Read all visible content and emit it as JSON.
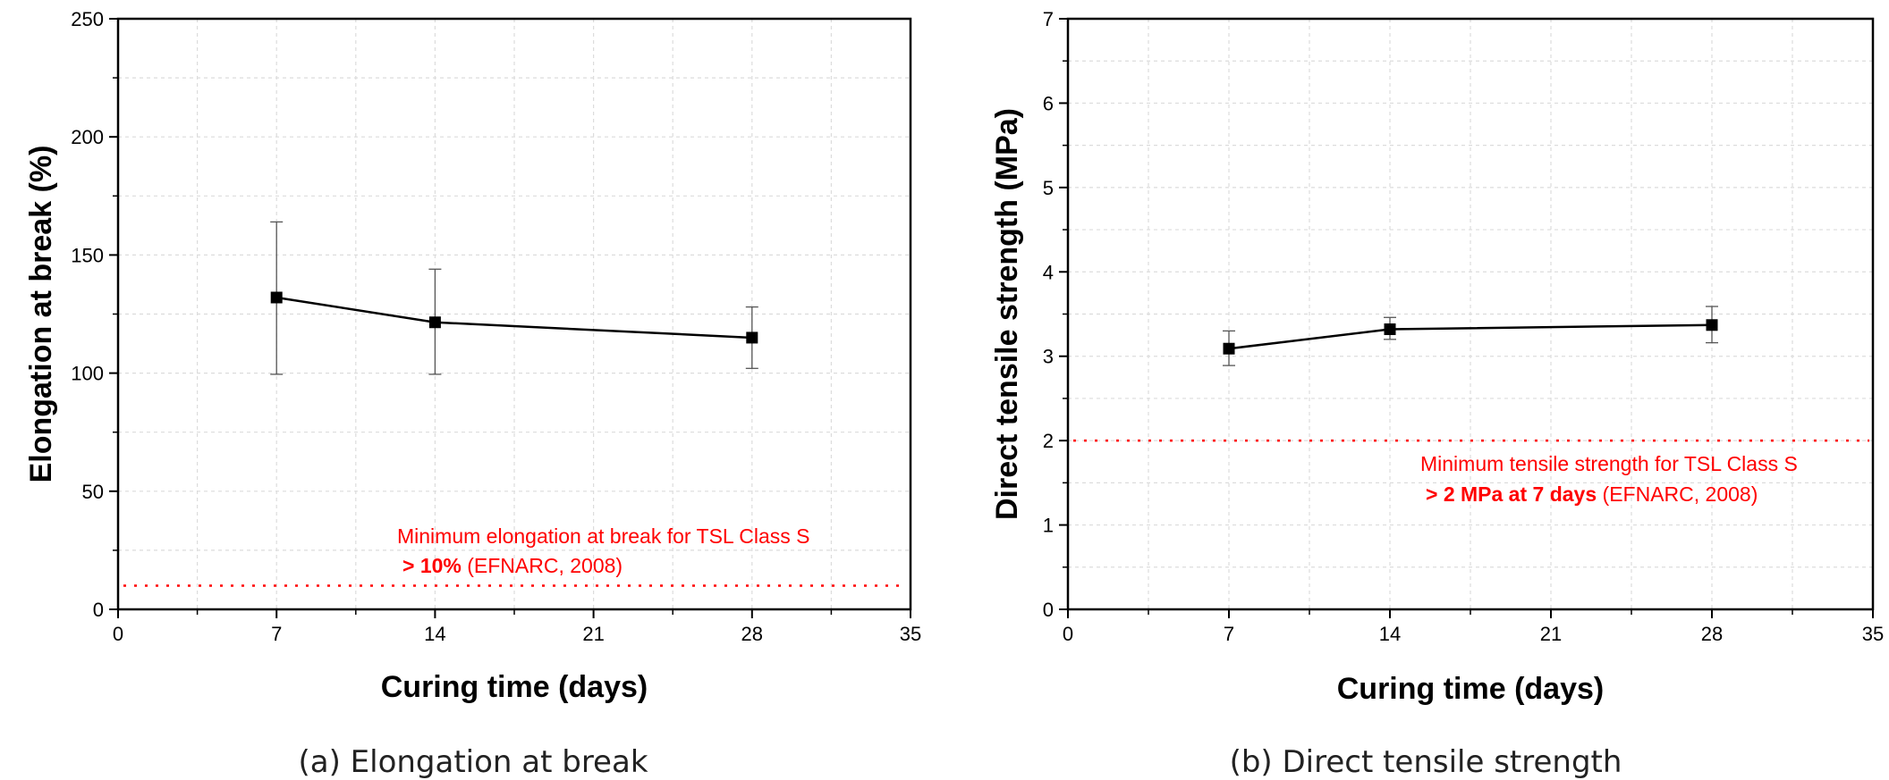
{
  "chart_data": [
    {
      "type": "line",
      "caption": "(a) Elongation at break",
      "xlabel": "Curing time (days)",
      "ylabel": "Elongation at break (%)",
      "xlim": [
        0,
        35
      ],
      "ylim": [
        0,
        250
      ],
      "xticks": [
        0,
        7,
        14,
        21,
        28,
        35
      ],
      "yticks": [
        0,
        50,
        100,
        150,
        200,
        250
      ],
      "grid": true,
      "series": [
        {
          "name": "Elongation at break",
          "x": [
            7,
            14,
            28
          ],
          "y": [
            132,
            121.5,
            115
          ],
          "err_low": [
            99.5,
            99.5,
            102
          ],
          "err_high": [
            164,
            144,
            128
          ]
        }
      ],
      "threshold": {
        "value": 10,
        "color": "#ff0000"
      },
      "annotation": {
        "line1": "Minimum elongation at break for TSL Class S",
        "line2_bold": "> 10%",
        "line2_rest": " (EFNARC, 2008)"
      }
    },
    {
      "type": "line",
      "caption": "(b) Direct tensile strength",
      "xlabel": "Curing time (days)",
      "ylabel": "Direct tensile strength (MPa)",
      "xlim": [
        0,
        35
      ],
      "ylim": [
        0,
        7
      ],
      "xticks": [
        0,
        7,
        14,
        21,
        28,
        35
      ],
      "yticks": [
        0,
        1,
        2,
        3,
        4,
        5,
        6,
        7
      ],
      "grid": true,
      "series": [
        {
          "name": "Direct tensile strength",
          "x": [
            7,
            14,
            28
          ],
          "y": [
            3.09,
            3.32,
            3.37
          ],
          "err_low": [
            2.89,
            3.2,
            3.16
          ],
          "err_high": [
            3.3,
            3.46,
            3.59
          ]
        }
      ],
      "threshold": {
        "value": 2,
        "color": "#ff0000"
      },
      "annotation": {
        "line1": "Minimum tensile strength for TSL Class S",
        "line2_bold": "> 2 MPa at 7 days",
        "line2_rest": " (EFNARC, 2008)"
      }
    }
  ]
}
